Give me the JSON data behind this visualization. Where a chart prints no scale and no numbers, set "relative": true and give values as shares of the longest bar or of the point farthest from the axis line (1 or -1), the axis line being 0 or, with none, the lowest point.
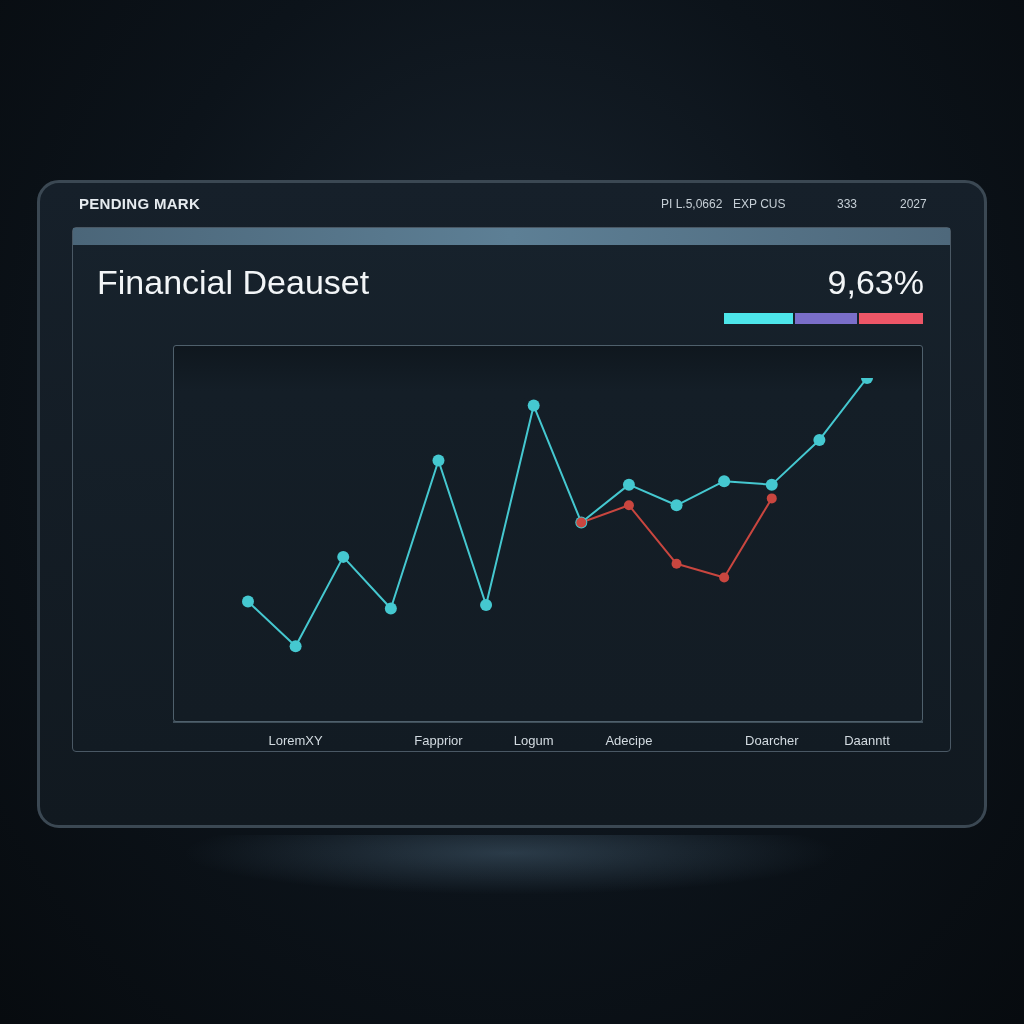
{
  "chart_data": {
    "type": "line",
    "title": "Financial Deauset",
    "annotations": [
      "PENDING MARK",
      "PI L.5,0662",
      "EXP CUS",
      "333",
      "2027",
      "9,63%"
    ],
    "categories": [
      null,
      "LoremXY",
      null,
      null,
      "Fapprior",
      null,
      "Logum",
      null,
      "Adecipe",
      null,
      null,
      "Doarcher",
      null,
      "Daanntt"
    ],
    "series": [
      {
        "color": "#45c8d0",
        "values": [
          0.35,
          0.22,
          0.48,
          0.33,
          0.76,
          0.34,
          0.92,
          0.58,
          0.69,
          0.63,
          0.7,
          0.69,
          0.82,
          1
        ]
      },
      {
        "color": "#c9463f",
        "values": [
          null,
          null,
          null,
          null,
          null,
          null,
          null,
          0.58,
          0.63,
          0.46,
          0.42,
          0.65,
          null,
          null
        ]
      }
    ],
    "relative": true,
    "marker": "circle",
    "line_style": "solid"
  }
}
